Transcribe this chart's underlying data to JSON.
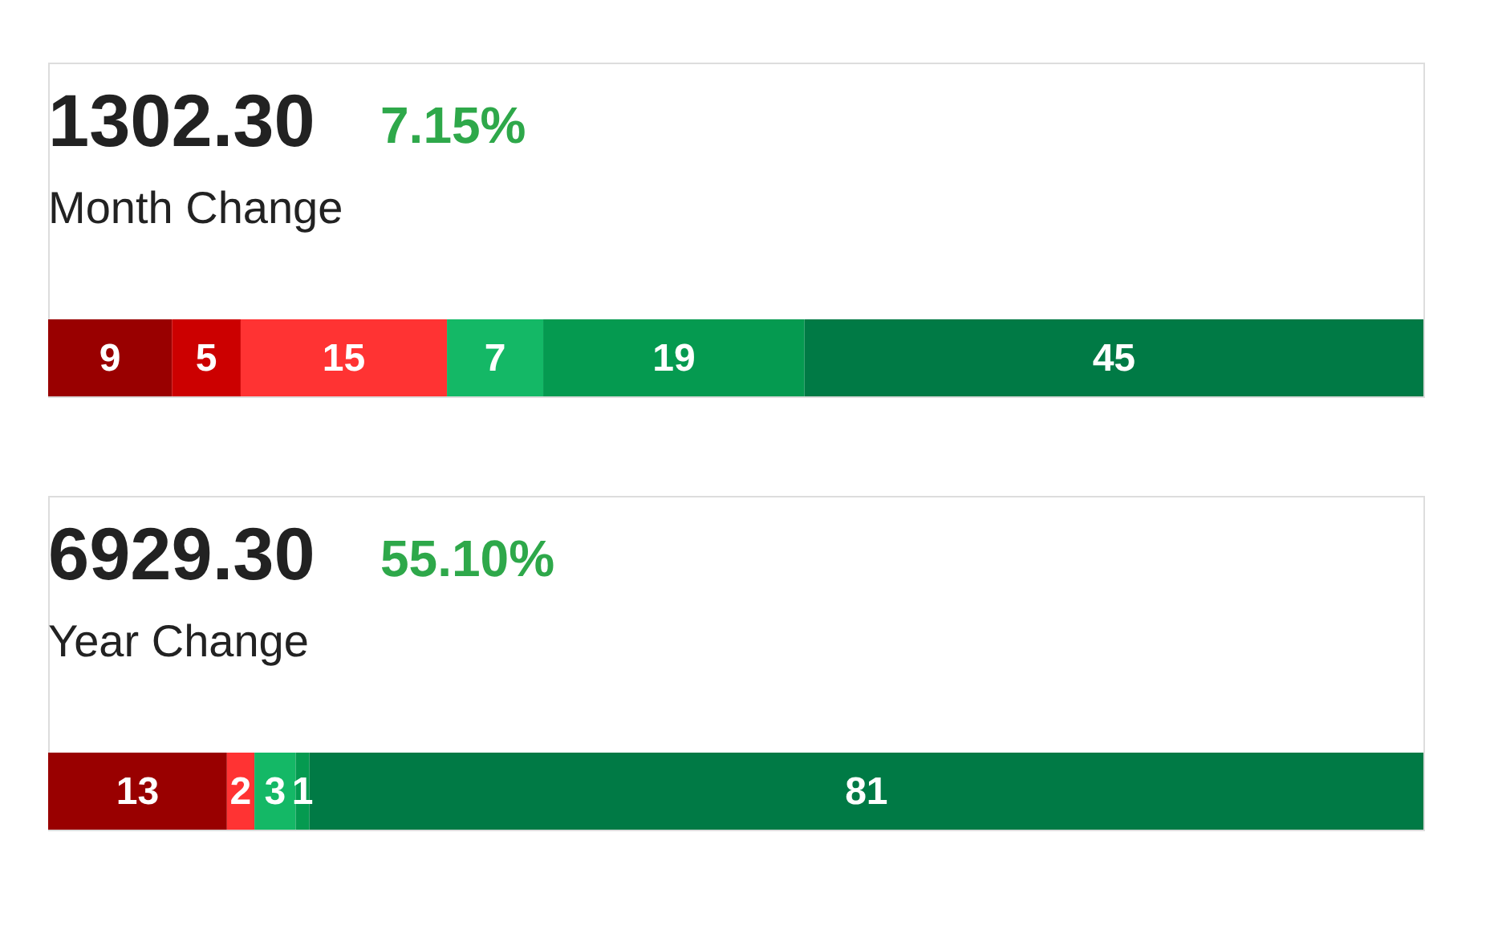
{
  "chart_data": [
    {
      "type": "bar",
      "orientation": "horizontal",
      "stacked": true,
      "title": "1302.30",
      "subtitle": "Month Change",
      "annotations": [
        "7.15%"
      ],
      "categories": [
        null
      ],
      "data_labels": true,
      "tick_labels": false,
      "series": [
        {
          "color": "#990000",
          "values": [
            9
          ]
        },
        {
          "color": "#cc0000",
          "values": [
            5
          ]
        },
        {
          "color": "#ff3333",
          "values": [
            15
          ]
        },
        {
          "color": "#14b866",
          "values": [
            7
          ]
        },
        {
          "color": "#059a50",
          "values": [
            19
          ]
        },
        {
          "color": "#007a45",
          "values": [
            45
          ]
        }
      ]
    },
    {
      "type": "bar",
      "orientation": "horizontal",
      "stacked": true,
      "title": "6929.30",
      "subtitle": "Year Change",
      "annotations": [
        "55.10%"
      ],
      "categories": [
        null
      ],
      "data_labels": true,
      "tick_labels": false,
      "series": [
        {
          "color": "#990000",
          "values": [
            13
          ]
        },
        {
          "color": "#ff3333",
          "values": [
            2
          ]
        },
        {
          "color": "#14b866",
          "values": [
            3
          ]
        },
        {
          "color": "#059a50",
          "values": [
            1
          ]
        },
        {
          "color": "#007a45",
          "values": [
            81
          ]
        }
      ]
    }
  ]
}
